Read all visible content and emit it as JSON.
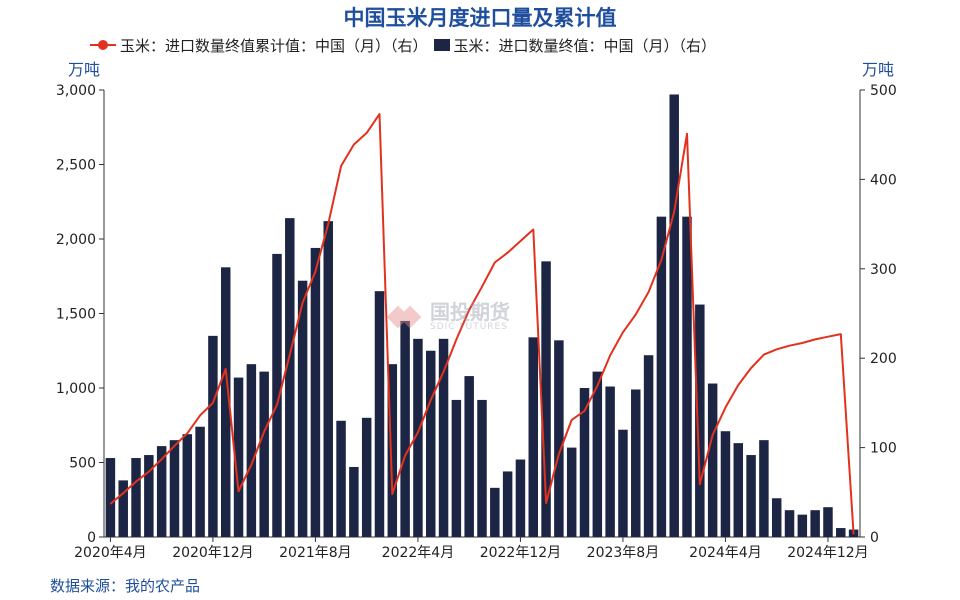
{
  "chart_data": {
    "type": "bar+line",
    "title": "中国玉米月度进口量及累计值",
    "source": "数据来源：我的农产品",
    "legend": {
      "line_label": "玉米：进口数量终值累计值：中国（月）（右）",
      "bar_label": "玉米：进口数量终值：中国（月）（右）",
      "placement": "top"
    },
    "y_left": {
      "unit": "万吨",
      "range": [
        0,
        3000
      ],
      "ticks": [
        "0",
        "500",
        "1,000",
        "1,500",
        "2,000",
        "2,500",
        "3,000"
      ]
    },
    "y_right": {
      "unit": "万吨",
      "range": [
        0,
        500
      ],
      "ticks": [
        "0",
        "100",
        "200",
        "300",
        "400",
        "500"
      ]
    },
    "x_tick_labels": [
      "2020年4月",
      "2020年12月",
      "2021年8月",
      "2022年4月",
      "2022年12月",
      "2023年8月",
      "2024年4月",
      "2024年12月"
    ],
    "x_tick_months": [
      "2020-04",
      "2020-12",
      "2021-08",
      "2022-04",
      "2022-12",
      "2023-08",
      "2024-04",
      "2024-12"
    ],
    "months": [
      "2020-04",
      "2020-05",
      "2020-06",
      "2020-07",
      "2020-08",
      "2020-09",
      "2020-10",
      "2020-11",
      "2020-12",
      "2021-01",
      "2021-02",
      "2021-03",
      "2021-04",
      "2021-05",
      "2021-06",
      "2021-07",
      "2021-08",
      "2021-09",
      "2021-10",
      "2021-11",
      "2021-12",
      "2022-01",
      "2022-02",
      "2022-03",
      "2022-04",
      "2022-05",
      "2022-06",
      "2022-07",
      "2022-08",
      "2022-09",
      "2022-10",
      "2022-11",
      "2022-12",
      "2023-01",
      "2023-02",
      "2023-03",
      "2023-04",
      "2023-05",
      "2023-06",
      "2023-07",
      "2023-08",
      "2023-09",
      "2023-10",
      "2023-11",
      "2023-12",
      "2024-01",
      "2024-02",
      "2024-03",
      "2024-04",
      "2024-05",
      "2024-06",
      "2024-07",
      "2024-08",
      "2024-09",
      "2024-10",
      "2024-11",
      "2024-12",
      "2025-01",
      "2025-02"
    ],
    "bar_values": [
      530,
      380,
      530,
      550,
      610,
      650,
      690,
      740,
      1350,
      1810,
      1070,
      1160,
      1110,
      1900,
      2140,
      1720,
      1940,
      2120,
      780,
      470,
      800,
      1650,
      1160,
      1450,
      1330,
      1250,
      1330,
      920,
      1080,
      920,
      330,
      440,
      520,
      1340,
      1850,
      1320,
      600,
      1000,
      1110,
      1010,
      720,
      990,
      1220,
      2150,
      2970,
      2150,
      1560,
      1030,
      710,
      630,
      550,
      650,
      260,
      180,
      150,
      180,
      200,
      60,
      50
    ],
    "line_values": [
      37,
      49,
      62,
      73,
      87,
      102,
      116,
      136,
      150,
      188,
      51,
      81,
      118,
      148,
      204,
      262,
      297,
      350,
      415,
      439,
      452,
      473,
      48,
      91,
      117,
      153,
      185,
      221,
      254,
      280,
      307,
      318,
      331,
      344,
      38,
      93,
      131,
      141,
      169,
      203,
      229,
      249,
      274,
      310,
      364,
      451,
      59,
      114,
      145,
      170,
      189,
      204,
      210,
      214,
      217,
      221,
      224,
      227,
      3
    ]
  }
}
